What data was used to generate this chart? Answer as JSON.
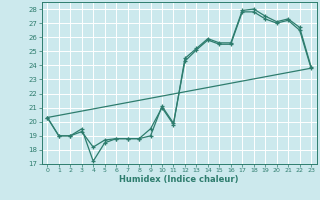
{
  "xlabel": "Humidex (Indice chaleur)",
  "bg_color": "#cce9ed",
  "grid_color": "#ffffff",
  "line_color": "#2e7d6e",
  "xlim": [
    -0.5,
    23.5
  ],
  "ylim": [
    17,
    28.5
  ],
  "yticks": [
    17,
    18,
    19,
    20,
    21,
    22,
    23,
    24,
    25,
    26,
    27,
    28
  ],
  "xticks": [
    0,
    1,
    2,
    3,
    4,
    5,
    6,
    7,
    8,
    9,
    10,
    11,
    12,
    13,
    14,
    15,
    16,
    17,
    18,
    19,
    20,
    21,
    22,
    23
  ],
  "line1_x": [
    0,
    1,
    2,
    3,
    4,
    5,
    6,
    7,
    8,
    9,
    10,
    11,
    12,
    13,
    14,
    15,
    16,
    17,
    18,
    19,
    20,
    21,
    22,
    23
  ],
  "line1_y": [
    20.3,
    19.0,
    19.0,
    19.3,
    18.2,
    18.7,
    18.8,
    18.8,
    18.8,
    19.0,
    21.1,
    19.9,
    24.3,
    25.1,
    25.8,
    25.5,
    25.5,
    27.8,
    27.8,
    27.3,
    27.0,
    27.2,
    26.5,
    23.8
  ],
  "line2_x": [
    0,
    1,
    2,
    3,
    4,
    5,
    6,
    7,
    8,
    9,
    10,
    11,
    12,
    13,
    14,
    15,
    16,
    17,
    18,
    19,
    20,
    21,
    22,
    23
  ],
  "line2_y": [
    20.3,
    19.0,
    19.0,
    19.5,
    17.2,
    18.5,
    18.8,
    18.8,
    18.8,
    19.5,
    21.0,
    19.8,
    24.5,
    25.2,
    25.9,
    25.6,
    25.6,
    27.9,
    28.0,
    27.5,
    27.1,
    27.3,
    26.7,
    23.9
  ],
  "line3_x": [
    0,
    23
  ],
  "line3_y": [
    20.3,
    23.8
  ]
}
